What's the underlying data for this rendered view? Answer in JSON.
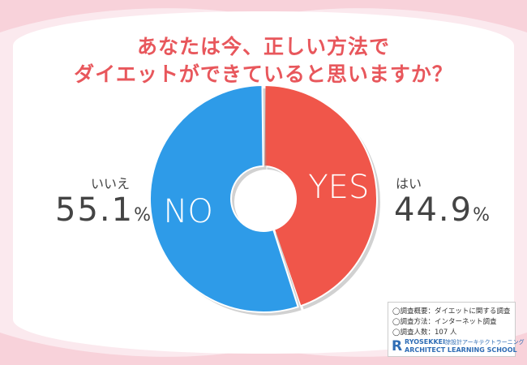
{
  "title_line1": "あなたは今、正しい方法で",
  "title_line2": "ダイエットができていると思いますか？",
  "chart_data": {
    "type": "pie",
    "donut": true,
    "slices": [
      {
        "label": "YES",
        "caption": "はい",
        "value": 44.9,
        "color": "#f0564a"
      },
      {
        "label": "NO",
        "caption": "いいえ",
        "value": 55.1,
        "color": "#2e9be8"
      }
    ]
  },
  "left_caption": "いいえ",
  "left_value": "55.1",
  "right_caption": "はい",
  "right_value": "44.9",
  "unit": "%",
  "info": {
    "summary": "◯調査概要：ダイエットに関する調査",
    "method": "◯調査方法：インターネット調査",
    "count": "◯調査人数：107 人"
  },
  "logo": {
    "mark": "R",
    "line1": "RYOSEKKEI",
    "line1b": "諒設計アーキテクトラーニング",
    "line2": "ARCHITECT LEARNING SCHOOL"
  }
}
